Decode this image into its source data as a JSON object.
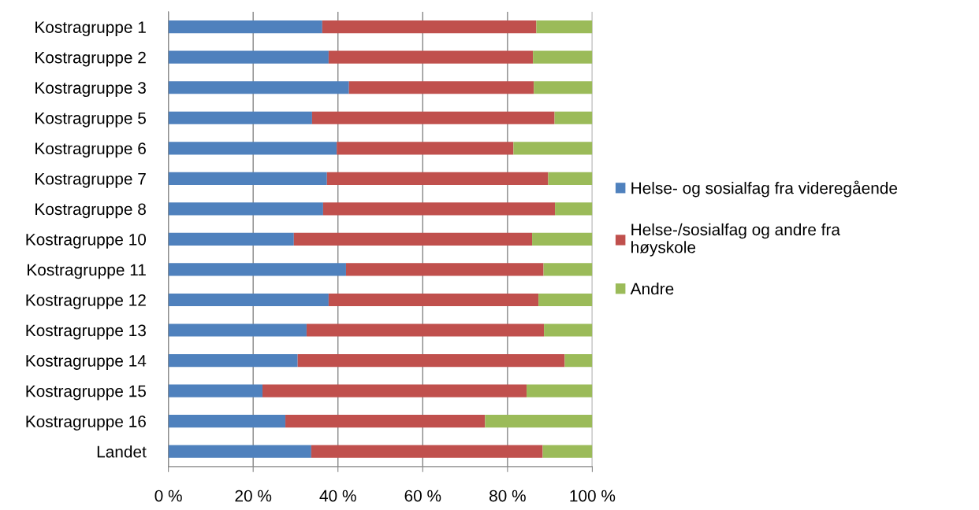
{
  "chart_data": {
    "type": "bar",
    "orientation": "horizontal",
    "stacked": true,
    "categories": [
      "Kostragruppe 1",
      "Kostragruppe 2",
      "Kostragruppe 3",
      "Kostragruppe 5",
      "Kostragruppe 6",
      "Kostragruppe 7",
      "Kostragruppe 8",
      "Kostragruppe 10",
      "Kostragruppe 11",
      "Kostragruppe 12",
      "Kostragruppe 13",
      "Kostragruppe 14",
      "Kostragruppe 15",
      "Kostragruppe 16",
      "Landet"
    ],
    "series": [
      {
        "name": "Helse- og sosialfag fra videregående",
        "color": "#4f81bd",
        "values": [
          36.3,
          37.8,
          42.6,
          33.9,
          39.7,
          37.4,
          36.5,
          29.6,
          41.9,
          37.8,
          32.6,
          30.5,
          22.2,
          27.6,
          33.7
        ]
      },
      {
        "name": "Helse-/sosialfag og andre fra\nhøyskole",
        "color": "#c0504d",
        "values": [
          50.5,
          48.2,
          43.6,
          57.2,
          41.7,
          52.2,
          54.7,
          56.2,
          46.6,
          49.5,
          56.0,
          63.0,
          62.3,
          47.1,
          54.6
        ]
      },
      {
        "name": "Andre",
        "color": "#9bbb59",
        "values": [
          13.2,
          14.0,
          13.8,
          8.9,
          18.6,
          10.4,
          8.8,
          14.2,
          11.5,
          12.7,
          11.4,
          6.5,
          15.5,
          25.3,
          11.7
        ]
      }
    ],
    "xlim": [
      0,
      100
    ],
    "xticks": [
      {
        "value": 0,
        "label": "0 %"
      },
      {
        "value": 20,
        "label": "20 %"
      },
      {
        "value": 40,
        "label": "40 %"
      },
      {
        "value": 60,
        "label": "60 %"
      },
      {
        "value": 80,
        "label": "80 %"
      },
      {
        "value": 100,
        "label": "100 %"
      }
    ],
    "grid": "x",
    "legend": "right"
  }
}
